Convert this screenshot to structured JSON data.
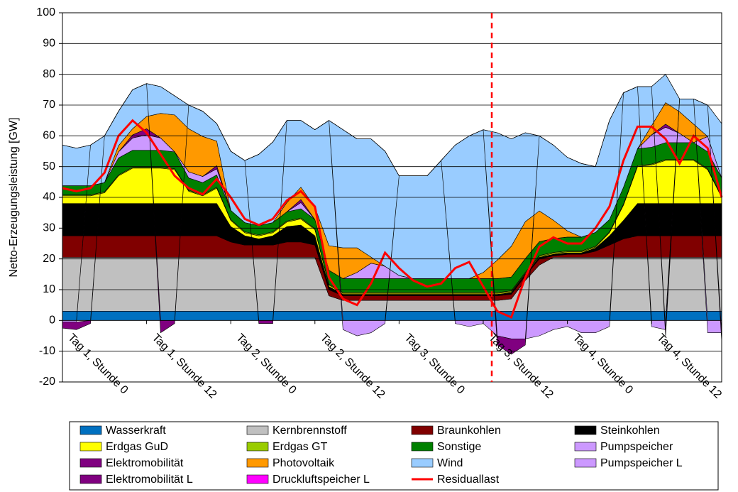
{
  "chart_data": {
    "type": "area",
    "stacked": true,
    "y_label": "Netto-Erzeugungsleistung [GW]",
    "ylim": [
      -20,
      100
    ],
    "yticks": [
      -20,
      -10,
      0,
      10,
      20,
      30,
      40,
      50,
      60,
      70,
      80,
      90,
      100
    ],
    "grid": true,
    "categories": [
      "Tag 1, Stunde 0",
      null,
      null,
      null,
      null,
      null,
      "Tag 1, Stunde 12",
      null,
      null,
      null,
      null,
      null,
      "Tag 2, Stunde 0",
      null,
      null,
      null,
      null,
      null,
      "Tag 2, Stunde 12",
      null,
      null,
      null,
      null,
      null,
      "Tag 3, Stunde 0",
      null,
      null,
      null,
      null,
      null,
      "Tag 3, Stunde 12",
      null,
      null,
      null,
      null,
      null,
      "Tag 4, Stunde 0",
      null,
      null,
      null,
      null,
      null,
      "Tag 4, Stunde 12",
      null,
      null,
      null,
      null,
      null
    ],
    "series": [
      {
        "name": "Wasserkraft",
        "color": "#0070c0",
        "values": [
          3,
          3,
          3,
          3,
          3,
          3,
          3,
          3,
          3,
          3,
          3,
          3,
          3,
          3,
          3,
          3,
          3,
          3,
          3,
          3,
          3,
          3,
          3,
          3,
          3,
          3,
          3,
          3,
          3,
          3,
          3,
          3,
          3,
          3,
          3,
          3,
          3,
          3,
          3,
          3,
          3,
          3,
          3,
          3,
          3,
          3,
          3,
          3
        ]
      },
      {
        "name": "Kernbrennstoff",
        "color": "#c0c0c0",
        "values": [
          17.5,
          17.5,
          17.5,
          17.5,
          17.5,
          17.5,
          17.5,
          17.5,
          17.5,
          17.5,
          17.5,
          17.5,
          17.5,
          17.5,
          17.5,
          17.5,
          17.5,
          17.5,
          17.5,
          5,
          3.5,
          3.5,
          3.5,
          3.5,
          3.5,
          3.5,
          3.5,
          3.5,
          3.5,
          3.5,
          3.5,
          3.5,
          4,
          10,
          15,
          17.5,
          17.5,
          17.5,
          17.5,
          17.5,
          17.5,
          17.5,
          17.5,
          17.5,
          17.5,
          17.5,
          17.5,
          17.5
        ]
      },
      {
        "name": "Braunkohlen",
        "color": "#800000",
        "values": [
          7,
          7,
          7,
          7,
          7,
          7,
          7,
          7,
          7,
          7,
          7,
          7,
          5,
          4,
          4,
          4,
          5,
          5,
          4,
          2,
          1.5,
          1.5,
          1.5,
          1.5,
          1.5,
          1.5,
          1.5,
          1.5,
          1.5,
          1.5,
          1.5,
          1.5,
          1.5,
          1.5,
          2,
          0.5,
          1,
          1,
          2,
          4,
          6,
          7,
          7,
          7,
          7,
          7,
          7,
          7
        ]
      },
      {
        "name": "Steinkohlen",
        "color": "#000000",
        "values": [
          10.5,
          10.5,
          10.5,
          10.5,
          10.5,
          10.5,
          10.5,
          10.5,
          10.5,
          10.5,
          10.5,
          10.5,
          5,
          3,
          2,
          3,
          5,
          5.5,
          3,
          1,
          0.5,
          0.5,
          0.5,
          0.5,
          0.5,
          0.5,
          0.5,
          0.5,
          0.5,
          0.5,
          0.5,
          0.5,
          0.5,
          0.5,
          0.5,
          0.5,
          0.5,
          0.5,
          1,
          3,
          6,
          10.5,
          10.5,
          10.5,
          10.5,
          10.5,
          10.5,
          10.5
        ]
      },
      {
        "name": "Erdgas GuD",
        "color": "#ffff00",
        "values": [
          2.5,
          2.5,
          2.5,
          3.5,
          9,
          11.5,
          11.5,
          11.5,
          11,
          4,
          2.5,
          5,
          2,
          1,
          1,
          1,
          1.5,
          2,
          2,
          0.5,
          0.3,
          0.3,
          0.3,
          0.3,
          0.3,
          0.3,
          0.3,
          0.3,
          0.3,
          0.3,
          0.3,
          0.3,
          0.3,
          0.3,
          0.3,
          0.3,
          0.3,
          0.3,
          0.3,
          1,
          5,
          12,
          12.5,
          14,
          14,
          14,
          11,
          2
        ]
      },
      {
        "name": "Erdgas GT",
        "color": "#99cc00",
        "values": [
          0.3,
          0.3,
          0.3,
          0.3,
          0.3,
          0.3,
          0.3,
          0.3,
          0.3,
          0.3,
          0.3,
          0.3,
          0.3,
          0.3,
          0.3,
          0.3,
          0.3,
          0.3,
          0.3,
          0.3,
          0.3,
          0.3,
          0.3,
          0.3,
          0.3,
          0.3,
          0.3,
          0.3,
          0.3,
          0.3,
          0.3,
          0.3,
          0.3,
          0.3,
          0.3,
          0.3,
          0.3,
          0.3,
          0.3,
          0.3,
          0.3,
          0.3,
          0.3,
          0.3,
          0.3,
          0.3,
          0.3,
          0.3
        ]
      },
      {
        "name": "Sonstige",
        "color": "#008000",
        "values": [
          3,
          3,
          3,
          3,
          5.5,
          5.5,
          5.5,
          5.5,
          5.5,
          4,
          4,
          4,
          3,
          3,
          3,
          3,
          3,
          3,
          3,
          4.5,
          4.5,
          4.5,
          4.5,
          4.5,
          4.5,
          4.5,
          4.5,
          4.5,
          4.5,
          4.5,
          4.5,
          4.5,
          4.5,
          4.5,
          4.5,
          4.5,
          4.5,
          4.5,
          4.5,
          4,
          5.5,
          5.5,
          5.5,
          5.5,
          5.5,
          5.5,
          5.5,
          6
        ]
      },
      {
        "name": "Pumpspeicher",
        "color": "#cc99ff",
        "values": [
          0,
          0,
          0,
          0,
          2,
          4,
          5,
          4,
          0,
          2,
          2,
          2,
          0,
          0,
          0,
          0,
          0,
          2,
          0,
          0,
          0,
          2,
          5,
          4,
          1,
          0,
          0,
          0,
          0,
          0,
          0,
          0,
          0,
          0,
          0,
          0,
          0,
          0,
          0,
          0,
          0,
          0,
          4,
          5,
          3,
          0,
          5,
          0
        ]
      },
      {
        "name": "Elektromobilität",
        "color": "#800080",
        "values": [
          0,
          0,
          0,
          0,
          0,
          1,
          2,
          0,
          0,
          0,
          0,
          1,
          0,
          0,
          0,
          0,
          0,
          1,
          0,
          0,
          0,
          0,
          0,
          0,
          0,
          0,
          0,
          0,
          0,
          0,
          0,
          0,
          0,
          0,
          0,
          0,
          0,
          0,
          0,
          0,
          0,
          0,
          0,
          1,
          0,
          0,
          0,
          0
        ]
      },
      {
        "name": "Photovoltaik",
        "color": "#ff9900",
        "values": [
          0,
          0,
          0,
          0,
          2,
          2,
          4,
          8,
          12,
          14,
          13,
          8,
          0,
          0,
          0,
          0,
          3,
          4,
          4,
          8,
          10,
          8,
          2,
          0,
          0,
          0,
          0,
          0,
          0,
          0,
          2,
          6,
          10,
          12,
          10,
          6,
          2,
          0,
          0,
          0,
          0,
          0,
          3,
          7,
          7,
          6,
          0,
          0
        ]
      },
      {
        "name": "Wind",
        "color": "#99ccff",
        "values": [
          13.2,
          12.2,
          13.2,
          15.2,
          11.2,
          12.7,
          10.7,
          8.7,
          6.2,
          7.7,
          8.2,
          5.7,
          19.2,
          20.2,
          23.2,
          26.2,
          26.7,
          21.7,
          25.2,
          40.7,
          38.4,
          35.4,
          38.4,
          37.4,
          32.4,
          33.4,
          33.4,
          38.4,
          43.4,
          46.4,
          46.4,
          41.4,
          34.9,
          28.9,
          24.4,
          24.4,
          23.9,
          23.9,
          21.4,
          32.2,
          30.7,
          20.2,
          12.7,
          9.2,
          4.2,
          8.2,
          10.2,
          17.7
        ]
      },
      {
        "name": "Pumpspeicher L",
        "color": "#cc99ff",
        "values": [
          -0.5,
          -0.5,
          0,
          0,
          0,
          0,
          0,
          0,
          0,
          0,
          0,
          0,
          0,
          0,
          0,
          0,
          0,
          0,
          0,
          0,
          -3,
          -5,
          -4,
          -1,
          0,
          0,
          0,
          0,
          -1,
          -2,
          -1,
          -5,
          -6,
          -6,
          -5,
          -3,
          -2,
          -4,
          -4,
          -2,
          0,
          0,
          -2,
          -3,
          0,
          0,
          -4,
          -4
        ]
      },
      {
        "name": "Elektromobilität L",
        "color": "#800080",
        "values": [
          -2,
          -2.5,
          -1,
          0,
          0,
          0,
          0,
          -4,
          -1,
          0,
          0,
          0,
          0,
          0,
          -1,
          -1,
          0,
          0,
          0,
          0,
          0,
          0,
          0,
          0,
          0,
          0,
          0,
          0,
          0,
          0,
          0,
          -3,
          -5,
          -2,
          0,
          0,
          0,
          0,
          0,
          0,
          0,
          0,
          0,
          -2,
          0,
          0,
          0,
          -3
        ]
      },
      {
        "name": "Druckluftspeicher L",
        "color": "#ff00ff",
        "values": [
          0,
          0,
          0,
          0,
          0,
          0,
          0,
          0,
          0,
          0,
          0,
          0,
          0,
          0,
          0,
          0,
          0,
          0,
          0,
          0,
          0,
          0,
          0,
          0,
          0,
          0,
          0,
          0,
          0,
          0,
          0,
          0,
          0,
          0,
          0,
          0,
          0,
          0,
          0,
          0,
          0,
          0,
          0,
          0,
          0,
          0,
          0,
          0
        ]
      },
      {
        "name": "Residuallast",
        "color": "#ff0000",
        "type": "line",
        "values": [
          43,
          42,
          43,
          48,
          60,
          65,
          61,
          54,
          47,
          43,
          41,
          46,
          40,
          33,
          31,
          33,
          39,
          42,
          37,
          14,
          7,
          5,
          12,
          22,
          17,
          13,
          11,
          12,
          17,
          19,
          11,
          3,
          1,
          14,
          24,
          27,
          25,
          25,
          30,
          37,
          52,
          63,
          63,
          59,
          51,
          60,
          56,
          40
        ]
      }
    ]
  }
}
